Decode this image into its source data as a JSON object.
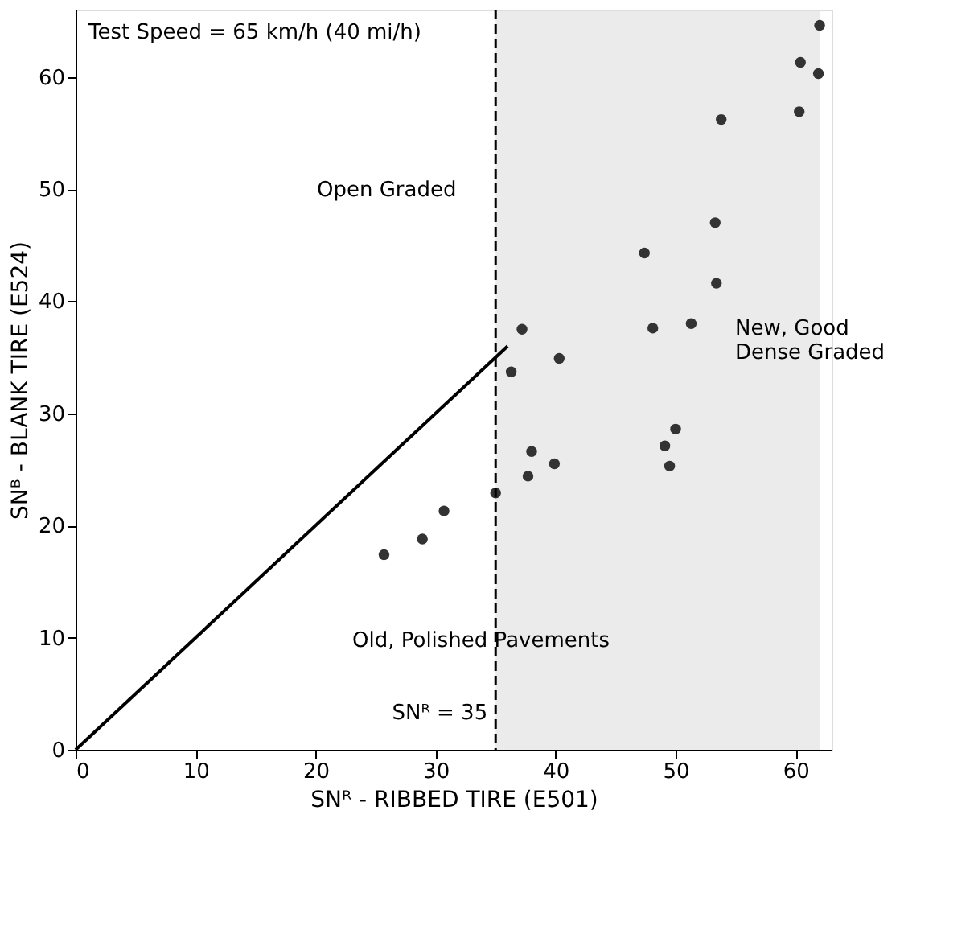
{
  "chart_data": {
    "type": "scatter",
    "xlabel": "SNᴿ - RIBBED TIRE (E501)",
    "ylabel": "SNᴮ - BLANK TIRE (E524)",
    "x": [
      25.7,
      28.9,
      30.7,
      35.0,
      37.7,
      38.0,
      39.9,
      49.1,
      50.0,
      49.5,
      62.0,
      60.4,
      61.9,
      60.3,
      53.8,
      53.3,
      47.4,
      53.4,
      48.1,
      51.3,
      37.2,
      40.3,
      36.3
    ],
    "series": [
      {
        "color": "#333333",
        "marker": "circle",
        "values": [
          17.4,
          18.8,
          21.3,
          22.9,
          24.4,
          26.6,
          25.5,
          27.1,
          28.6,
          25.3,
          64.6,
          61.3,
          60.3,
          56.9,
          56.2,
          47.0,
          44.3,
          41.6,
          37.6,
          38.0,
          37.5,
          34.9,
          33.7
        ]
      },
      {
        "type": "line",
        "color": "#000000",
        "x": [
          0,
          36
        ],
        "values": [
          0,
          36
        ]
      }
    ],
    "xlim": [
      0,
      63
    ],
    "ylim": [
      0,
      66
    ],
    "xticks": [
      0,
      10,
      20,
      30,
      40,
      50,
      60
    ],
    "yticks": [
      0,
      10,
      20,
      30,
      40,
      50,
      60
    ],
    "ref_lines": [
      {
        "axis": "x",
        "value": 35,
        "label": "SNᴿ = 35",
        "color": "#000000",
        "line_style": "dashed"
      }
    ],
    "bands": [
      {
        "axis": "x",
        "from": 35,
        "to": 62,
        "color": "#dddddd"
      }
    ],
    "annotations": [
      "Test Speed = 65 km/h (40 mi/h)",
      "Open Graded",
      "New, Good\nDense Graded",
      "Old, Polished Pavements"
    ],
    "grid": false
  }
}
